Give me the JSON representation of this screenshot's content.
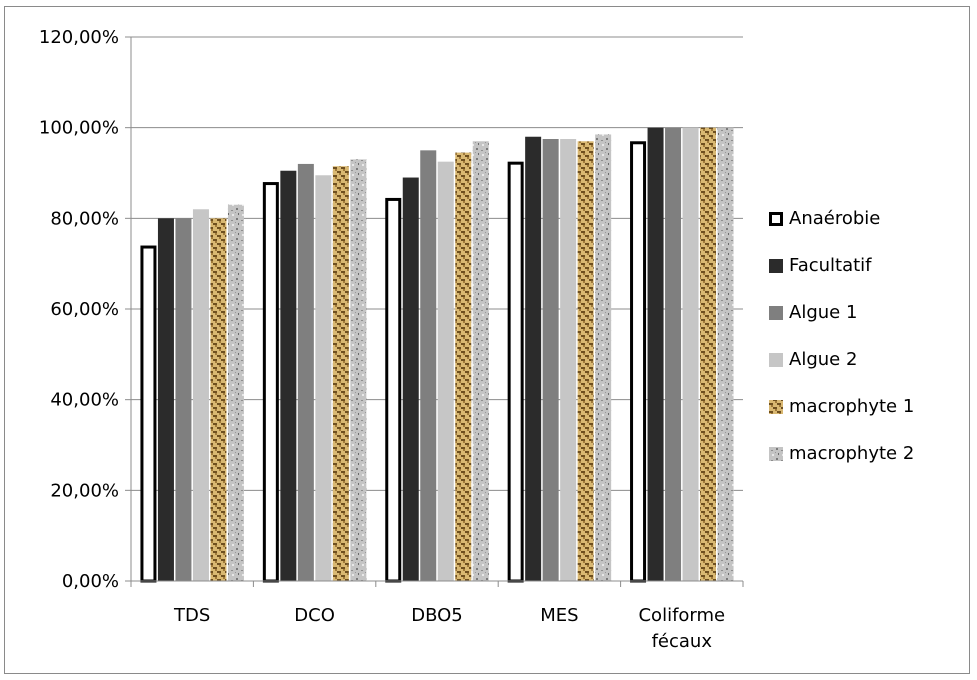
{
  "chart_data": {
    "type": "bar",
    "categories": [
      "TDS",
      "DCO",
      "DBO5",
      "MES",
      "Coliforme fécaux"
    ],
    "series": [
      {
        "name": "Anaérobie",
        "values": [
          74.0,
          88.0,
          84.5,
          92.5,
          97.0
        ],
        "color": "#ffffff",
        "stroke": "#000000",
        "pattern": "none"
      },
      {
        "name": "Facultatif",
        "values": [
          80.0,
          90.5,
          89.0,
          98.0,
          100.0
        ],
        "color": "#2b2b2b",
        "pattern": "none"
      },
      {
        "name": "Algue 1",
        "values": [
          80.0,
          92.0,
          95.0,
          97.5,
          100.0
        ],
        "color": "#7f7f7f",
        "pattern": "none"
      },
      {
        "name": "Algue 2",
        "values": [
          82.0,
          89.5,
          92.5,
          97.5,
          100.0
        ],
        "color": "#c6c6c6",
        "pattern": "none"
      },
      {
        "name": "macrophyte 1",
        "values": [
          80.0,
          91.5,
          94.5,
          97.0,
          100.0
        ],
        "color": "#c9a15a",
        "pattern": "woven"
      },
      {
        "name": "macrophyte 2",
        "values": [
          83.0,
          93.0,
          97.0,
          98.5,
          100.0
        ],
        "color": "#b8b8b8",
        "pattern": "granite"
      }
    ],
    "ylim": [
      0,
      120
    ],
    "yticks": [
      "0,00%",
      "20,00%",
      "40,00%",
      "60,00%",
      "80,00%",
      "100,00%",
      "120,00%"
    ],
    "xlabel": "",
    "ylabel": "",
    "title": "",
    "grid": true,
    "legend_position": "right"
  }
}
